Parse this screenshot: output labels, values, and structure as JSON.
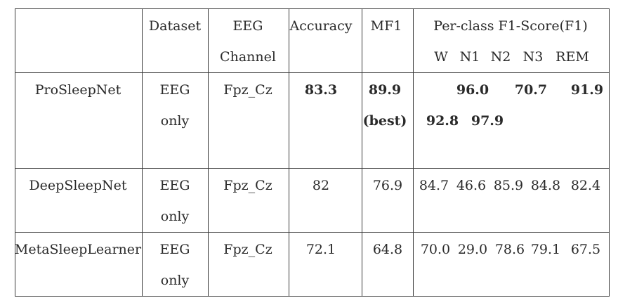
{
  "header": {
    "dataset": "Dataset",
    "eeg_line1": "EEG",
    "eeg_line2": "Channel",
    "accuracy": "Accuracy",
    "mf1": "MF1",
    "per_class": "Per-class F1-Score(F1)",
    "classes": [
      "W",
      "N1",
      "N2",
      "N3",
      "REM"
    ]
  },
  "rows": [
    {
      "model": "ProSleepNet",
      "dataset_line1": "EEG",
      "dataset_line2": "only",
      "channel": "Fpz_Cz",
      "accuracy": "83.3",
      "mf1": "89.9",
      "mf1_note": "(best)",
      "f1_line1": [
        "96.0",
        "70.7",
        "91.9"
      ],
      "f1_line2": [
        "92.8",
        "97.9"
      ]
    },
    {
      "model": "DeepSleepNet",
      "dataset_line1": "EEG",
      "dataset_line2": "only",
      "channel": "Fpz_Cz",
      "accuracy": "82",
      "mf1": "76.9",
      "f1": [
        "84.7",
        "46.6",
        "85.9",
        "84.8",
        "82.4"
      ]
    },
    {
      "model": "MetaSleepLearner",
      "dataset_line1": "EEG",
      "dataset_line2": "only",
      "channel": "Fpz_Cz",
      "accuracy": "72.1",
      "mf1": "64.8",
      "f1": [
        "70.0",
        "29.0",
        "78.6",
        "79.1",
        "67.5"
      ]
    }
  ]
}
